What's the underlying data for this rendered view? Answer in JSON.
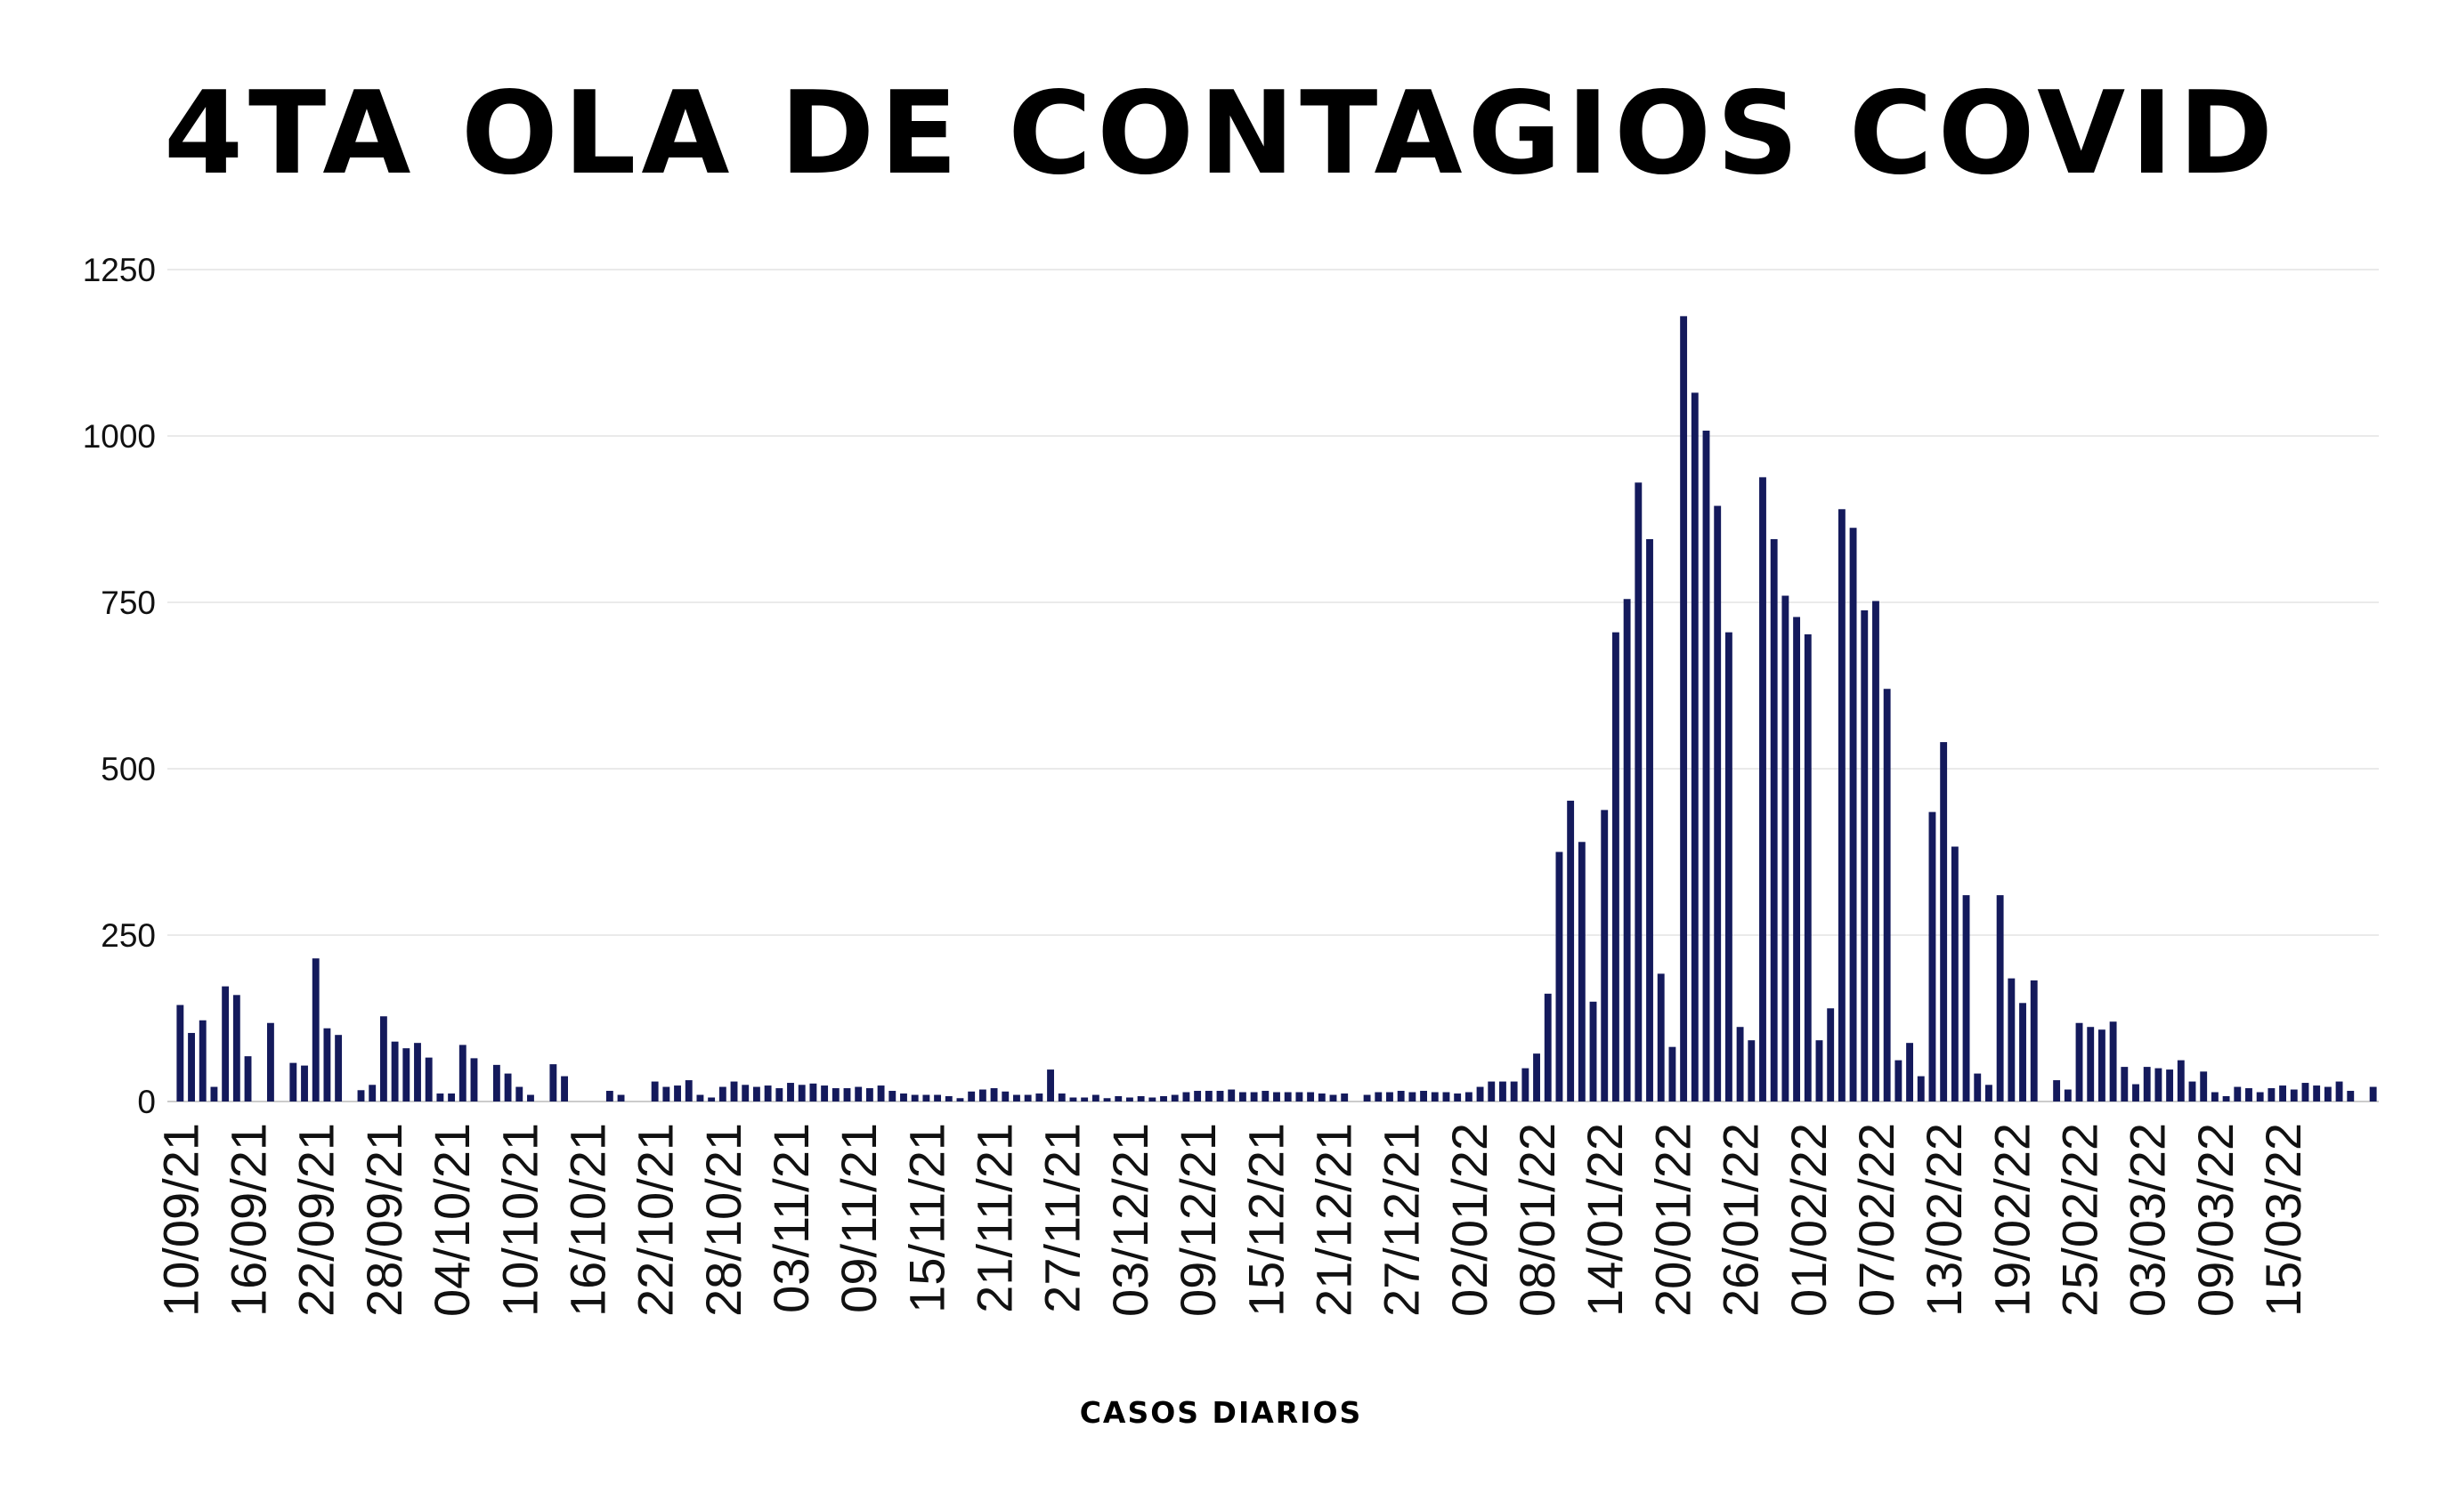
{
  "colors": {
    "bar": "#141a5c",
    "grid": "#e3e3e3",
    "axis": "#cccccc",
    "text": "#111111"
  },
  "chart_data": {
    "type": "bar",
    "title": "4TA OLA DE CONTAGIOS COVID",
    "xlabel": "CASOS DIARIOS",
    "ylabel": "",
    "ylim": [
      0,
      1250
    ],
    "yticks": [
      0,
      250,
      500,
      750,
      1000,
      1250
    ],
    "grid": true,
    "legend": "none",
    "tick_labels": [
      "10/09/21",
      "16/09/21",
      "22/09/21",
      "28/09/21",
      "04/10/21",
      "10/10/21",
      "16/10/21",
      "22/10/21",
      "28/10/21",
      "03/11/21",
      "09/11/21",
      "15/11/21",
      "21/11/21",
      "27/11/21",
      "03/12/21",
      "09/12/21",
      "15/12/21",
      "21/12/21",
      "27/12/21",
      "02/01/22",
      "08/01/22",
      "14/01/22",
      "20/01/22",
      "26/01/22",
      "01/02/22",
      "07/02/22",
      "13/02/22",
      "19/02/22",
      "25/02/22",
      "03/03/22",
      "09/03/22",
      "15/03/22"
    ],
    "tick_every": 6,
    "values": [
      145,
      103,
      122,
      22,
      173,
      160,
      68,
      0,
      118,
      0,
      58,
      54,
      215,
      110,
      100,
      0,
      17,
      25,
      128,
      90,
      80,
      88,
      66,
      12,
      12,
      85,
      65,
      0,
      55,
      42,
      22,
      10,
      0,
      56,
      38,
      0,
      0,
      0,
      16,
      10,
      0,
      0,
      30,
      22,
      24,
      32,
      10,
      6,
      22,
      30,
      25,
      22,
      24,
      20,
      28,
      25,
      27,
      24,
      20,
      20,
      22,
      20,
      24,
      16,
      12,
      10,
      10,
      10,
      8,
      5,
      15,
      18,
      20,
      15,
      10,
      10,
      12,
      48,
      12,
      6,
      6,
      10,
      5,
      8,
      6,
      8,
      6,
      8,
      10,
      14,
      16,
      16,
      16,
      18,
      14,
      14,
      16,
      14,
      14,
      14,
      14,
      12,
      10,
      12,
      0,
      10,
      14,
      14,
      16,
      14,
      16,
      14,
      14,
      12,
      14,
      22,
      30,
      30,
      30,
      50,
      72,
      162,
      375,
      452,
      390,
      150,
      438,
      705,
      755,
      930,
      845,
      192,
      82,
      1180,
      1065,
      1008,
      895,
      705,
      112,
      92,
      938,
      845,
      760,
      728,
      702,
      92,
      140,
      890,
      862,
      738,
      752,
      620,
      62,
      88,
      38,
      435,
      540,
      383,
      310,
      42,
      25,
      310,
      185,
      148,
      182,
      0,
      32,
      18,
      118,
      112,
      108,
      120,
      52,
      26,
      52,
      50,
      48,
      62,
      30,
      45,
      14,
      8,
      22,
      20,
      14,
      20,
      24,
      18,
      28,
      24,
      22,
      30,
      16,
      0,
      22
    ]
  }
}
